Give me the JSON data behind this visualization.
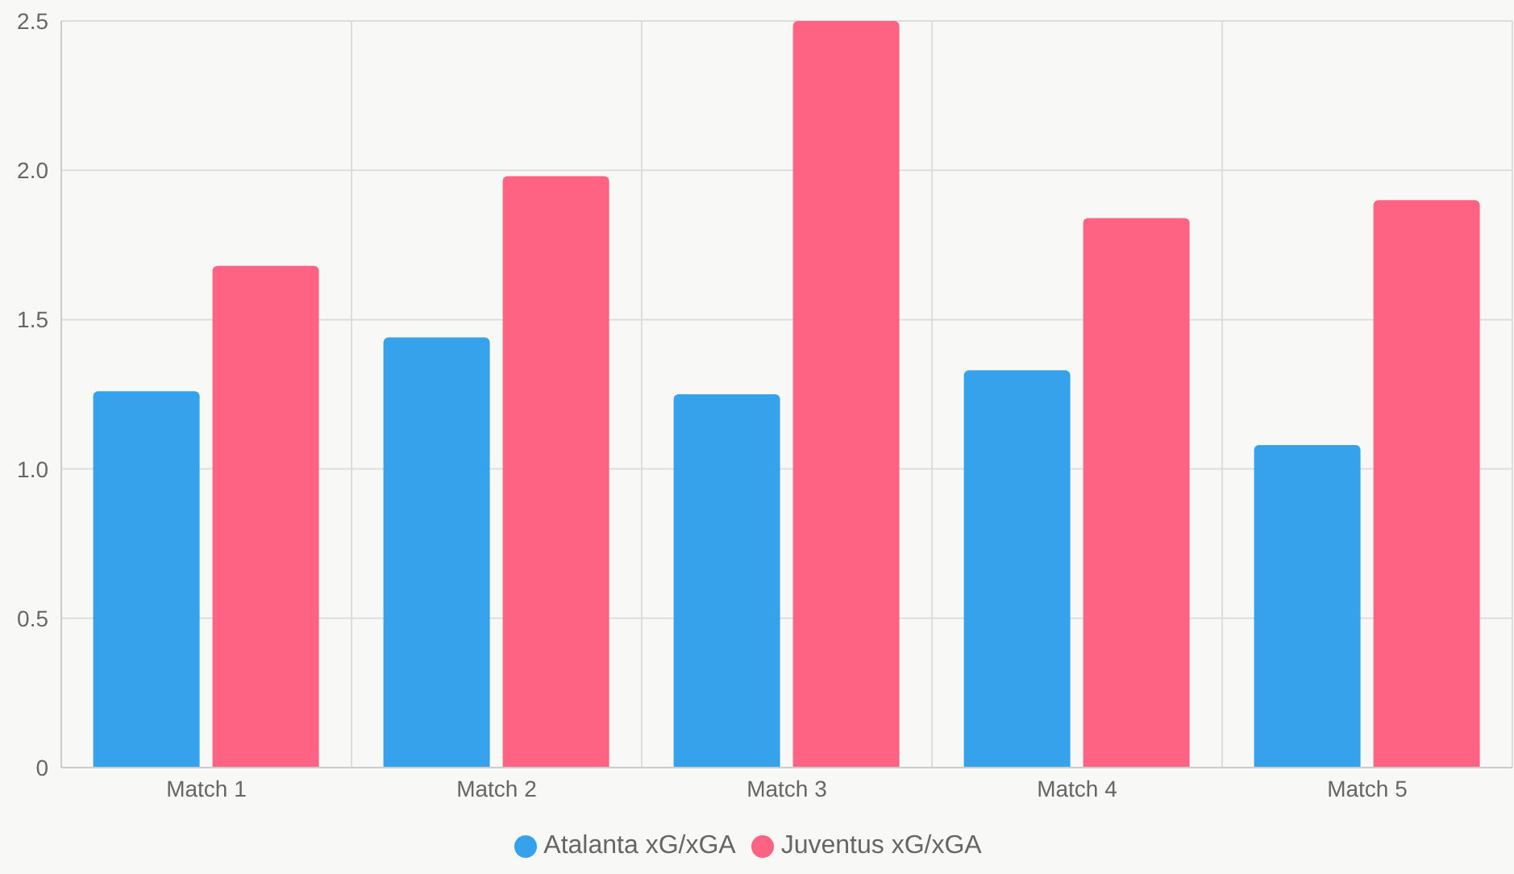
{
  "chart_data": {
    "type": "bar",
    "categories": [
      "Match 1",
      "Match 2",
      "Match 3",
      "Match 4",
      "Match 5"
    ],
    "series": [
      {
        "name": "Atalanta xG/xGA",
        "color": "#36a2eb",
        "values": [
          1.26,
          1.44,
          1.25,
          1.33,
          1.08
        ]
      },
      {
        "name": "Juventus xG/xGA",
        "color": "#ff6384",
        "values": [
          1.68,
          1.98,
          2.5,
          1.84,
          1.9
        ]
      }
    ],
    "ylim": [
      0,
      2.5
    ],
    "yticks": [
      0,
      0.5,
      {
        "value": 1,
        "label": "1.0"
      },
      1.5,
      {
        "value": 2,
        "label": "2.0"
      },
      2.5
    ],
    "grid": true,
    "legend": "bottom"
  }
}
